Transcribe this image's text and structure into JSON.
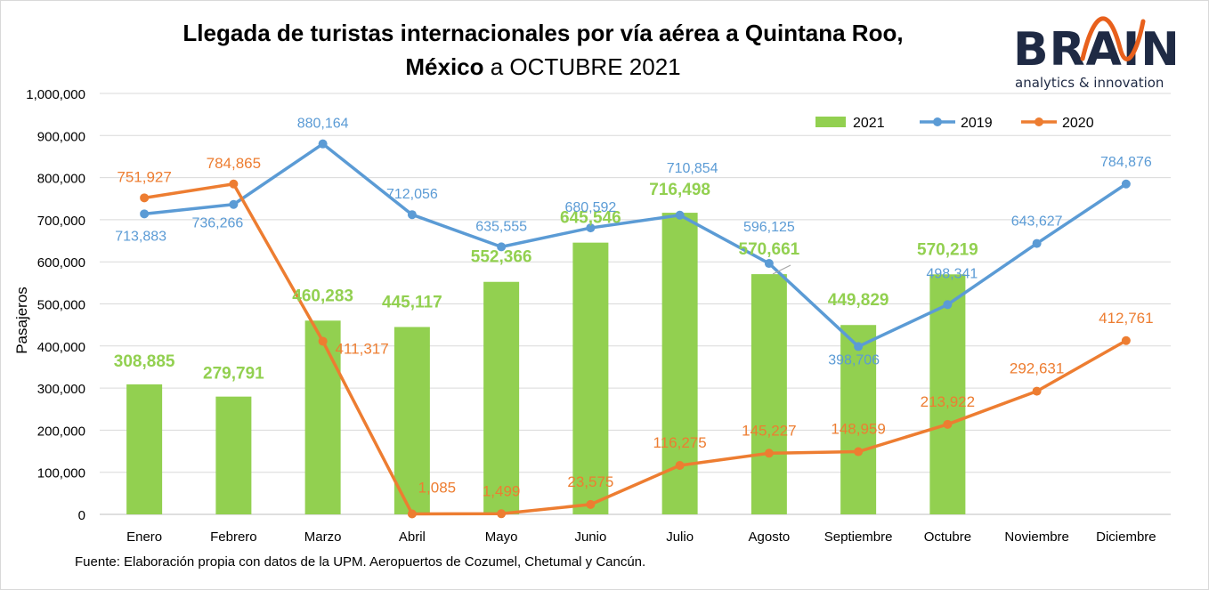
{
  "title_bold_1": "Llegada de turistas internacionales por vía aérea a Quintana Roo,",
  "title_bold_2": "México",
  "title_rest": "a OCTUBRE 2021",
  "logo": {
    "word": "BRAIN",
    "tagline": "analytics & innovation",
    "wave_color": "#e8601c"
  },
  "source": "Fuente: Elaboración propia con datos de la UPM. Aeropuertos de Cozumel, Chetumal  y Cancún.",
  "chart_data": {
    "type": "bar",
    "ylabel": "Pasajeros",
    "ylim": [
      0,
      1000000
    ],
    "ytick_step": 100000,
    "ytick_labels": [
      "0",
      "100,000",
      "200,000",
      "300,000",
      "400,000",
      "500,000",
      "600,000",
      "700,000",
      "800,000",
      "900,000",
      "1,000,000"
    ],
    "grid": true,
    "legend_position": "top-right",
    "categories": [
      "Enero",
      "Febrero",
      "Marzo",
      "Abril",
      "Mayo",
      "Junio",
      "Julio",
      "Agosto",
      "Septiembre",
      "Octubre",
      "Noviembre",
      "Diciembre"
    ],
    "series": [
      {
        "name": "2021",
        "kind": "bar",
        "color": "#92d050",
        "values": [
          308885,
          279791,
          460283,
          445117,
          552366,
          645546,
          716498,
          570661,
          449829,
          570219,
          null,
          null
        ],
        "labels": [
          "308,885",
          "279,791",
          "460,283",
          "445,117",
          "552,366",
          "645,546",
          "716,498",
          "570,661",
          "449,829",
          "570,219",
          "",
          ""
        ]
      },
      {
        "name": "2019",
        "kind": "line",
        "color": "#5b9bd5",
        "values": [
          713883,
          736266,
          880164,
          712056,
          635555,
          680592,
          710854,
          596125,
          398706,
          498341,
          643627,
          784876
        ],
        "labels": [
          "713,883",
          "736,266",
          "880,164",
          "712,056",
          "635,555",
          "680,592",
          "710,854",
          "596,125",
          "398,706",
          "498,341",
          "643,627",
          "784,876"
        ]
      },
      {
        "name": "2020",
        "kind": "line",
        "color": "#ed7d31",
        "values": [
          751927,
          784865,
          411317,
          1085,
          1499,
          23575,
          116275,
          145227,
          148959,
          213922,
          292631,
          412761
        ],
        "labels": [
          "751,927",
          "784,865",
          "411,317",
          "1,085",
          "1,499",
          "23,575",
          "116,275",
          "145,227",
          "148,959",
          "213,922",
          "292,631",
          "412,761"
        ]
      }
    ]
  }
}
